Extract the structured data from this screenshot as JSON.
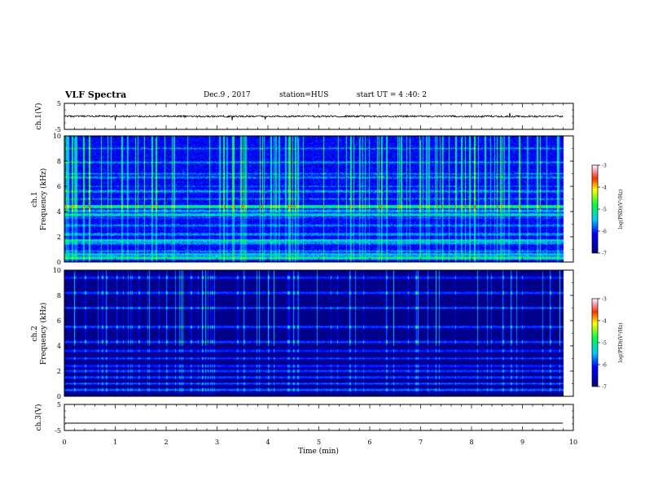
{
  "header": {
    "title": "VLF Spectra",
    "date": "Dec.9 , 2017",
    "station": "station=HUS",
    "start_time": "start UT =  4 :40: 2"
  },
  "chart_data": [
    {
      "type": "line",
      "name": "ch1-waveform",
      "ylabel": "ch.1(V)",
      "ylim": [
        -5,
        5
      ],
      "yticks": [
        "5",
        "-5"
      ],
      "xlim": [
        0,
        10
      ],
      "baseline": 0,
      "data_extent": 9.8,
      "spikes": [
        {
          "x": 1.0,
          "y": -1.6
        },
        {
          "x": 3.3,
          "y": -1.5
        },
        {
          "x": 3.95,
          "y": -1.2
        },
        {
          "x": 8.75,
          "y": 1.3
        }
      ]
    },
    {
      "type": "heatmap",
      "name": "ch1-spectrogram",
      "ylabel": "ch.1\nFrequency (kHz)",
      "ylim": [
        0,
        10
      ],
      "yticks": [
        "0",
        "2",
        "4",
        "6",
        "8",
        "10"
      ],
      "xlim": [
        0,
        10
      ],
      "data_extent": 9.8,
      "colorbar": {
        "label": "log(PSD)(V²/Hz)",
        "range": [
          -7,
          -3
        ],
        "ticks": [
          "-3",
          "-4",
          "-5",
          "-6",
          "-7"
        ]
      },
      "background_level": -6.2,
      "bands": [
        {
          "freq": 0.3,
          "level": -5.0
        },
        {
          "freq": 0.6,
          "level": -5.3
        },
        {
          "freq": 0.85,
          "level": -5.6
        },
        {
          "freq": 1.5,
          "level": -5.5
        },
        {
          "freq": 1.7,
          "level": -5.2
        },
        {
          "freq": 2.2,
          "level": -5.5
        },
        {
          "freq": 2.9,
          "level": -5.6
        },
        {
          "freq": 3.5,
          "level": -5.8
        },
        {
          "freq": 3.75,
          "level": -5.2
        },
        {
          "freq": 4.05,
          "level": -5.4
        },
        {
          "freq": 4.4,
          "level": -4.9
        },
        {
          "freq": 5.0,
          "level": -5.7
        },
        {
          "freq": 5.6,
          "level": -5.5
        },
        {
          "freq": 6.0,
          "level": -5.8
        },
        {
          "freq": 6.7,
          "level": -5.6
        },
        {
          "freq": 7.0,
          "level": -5.7
        },
        {
          "freq": 7.9,
          "level": -5.6
        },
        {
          "freq": 9.0,
          "level": -5.7
        }
      ],
      "impulse_count": 120
    },
    {
      "type": "heatmap",
      "name": "ch2-spectrogram",
      "ylabel": "ch.2\nFrequency (kHz)",
      "ylim": [
        0,
        10
      ],
      "yticks": [
        "0",
        "2",
        "4",
        "6",
        "8",
        "10"
      ],
      "xlim": [
        0,
        10
      ],
      "data_extent": 9.8,
      "colorbar": {
        "label": "log(PSD)(V²/Hz)",
        "range": [
          -7,
          -3
        ],
        "ticks": [
          "-3",
          "-4",
          "-5",
          "-6",
          "-7"
        ]
      },
      "background_level": -6.95,
      "bands": [
        {
          "freq": 0.5,
          "level": -5.7
        },
        {
          "freq": 1.0,
          "level": -5.8
        },
        {
          "freq": 1.5,
          "level": -5.8
        },
        {
          "freq": 2.0,
          "level": -5.8
        },
        {
          "freq": 2.4,
          "level": -5.9
        },
        {
          "freq": 3.0,
          "level": -5.9
        },
        {
          "freq": 3.6,
          "level": -5.9
        },
        {
          "freq": 4.3,
          "level": -5.8
        },
        {
          "freq": 5.5,
          "level": -5.8
        },
        {
          "freq": 7.0,
          "level": -5.8
        },
        {
          "freq": 8.2,
          "level": -5.8
        },
        {
          "freq": 9.4,
          "level": -5.9
        }
      ],
      "impulse_count": 70
    },
    {
      "type": "line",
      "name": "ch3-waveform",
      "ylabel": "ch.3(V)",
      "ylim": [
        -5,
        5
      ],
      "yticks": [
        "5",
        "-5"
      ],
      "xlim": [
        0,
        10
      ],
      "baseline": -2.2,
      "data_extent": 9.8,
      "spikes": []
    }
  ],
  "x_axis": {
    "label": "Time (min)",
    "ticks": [
      "0",
      "1",
      "2",
      "3",
      "4",
      "5",
      "6",
      "7",
      "8",
      "9",
      "10"
    ]
  }
}
